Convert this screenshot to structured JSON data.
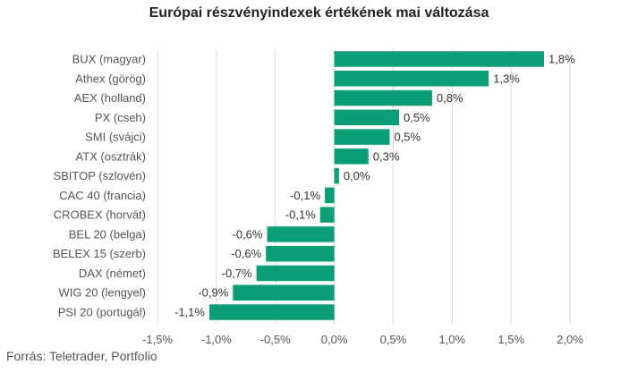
{
  "chart_data": {
    "type": "bar",
    "orientation": "horizontal",
    "title": "Európai részvényindexek értékének mai változása",
    "categories": [
      "BUX (magyar)",
      "Athex (görög)",
      "AEX (holland)",
      "PX (cseh)",
      "SMI (svájci)",
      "ATX (osztrák)",
      "SBITOP (szlovén)",
      "CAC 40 (francia)",
      "CROBEX (horvát)",
      "BEL 20 (belga)",
      "BELEX 15 (szerb)",
      "DAX (német)",
      "WIG 20 (lengyel)",
      "PSI 20 (portugál)"
    ],
    "values": [
      1.78,
      1.31,
      0.83,
      0.55,
      0.47,
      0.29,
      0.04,
      -0.08,
      -0.12,
      -0.57,
      -0.58,
      -0.66,
      -0.86,
      -1.06
    ],
    "value_labels": [
      "1,8%",
      "1,3%",
      "0,8%",
      "0,5%",
      "0,5%",
      "0,3%",
      "0,0%",
      "-0,1%",
      "-0,1%",
      "-0,6%",
      "-0,6%",
      "-0,7%",
      "-0,9%",
      "-1,1%"
    ],
    "xlim": [
      -1.5,
      2.0
    ],
    "xticks": [
      -1.5,
      -1.0,
      -0.5,
      0.0,
      0.5,
      1.0,
      1.5,
      2.0
    ],
    "xtick_labels": [
      "-1,5%",
      "-1,0%",
      "-0,5%",
      "0,0%",
      "0,5%",
      "1,0%",
      "1,5%",
      "2,0%"
    ],
    "grid": "vertical",
    "bar_color": "#0a9e76",
    "gridline_color": "#d9d9d9",
    "source": "Forrás: Teletrader, Portfolio"
  }
}
